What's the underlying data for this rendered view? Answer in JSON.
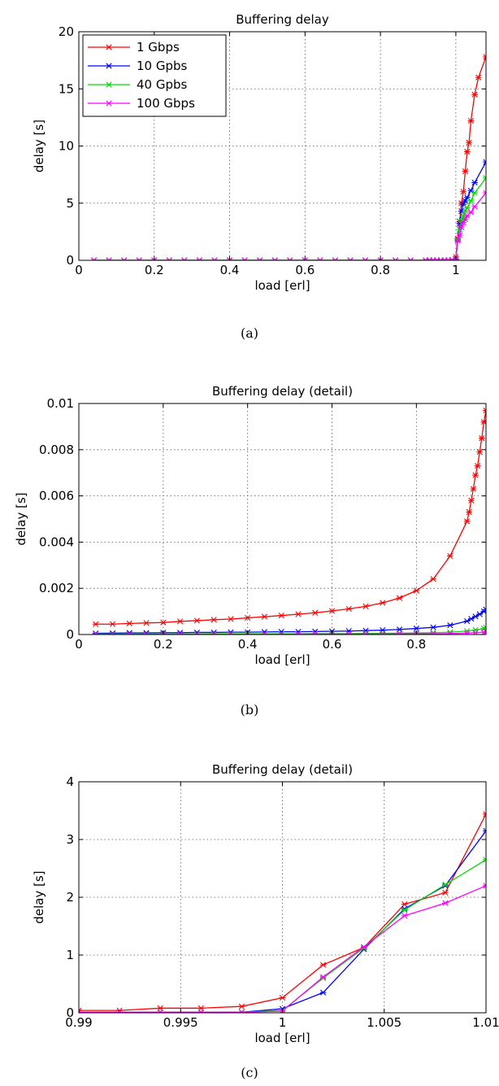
{
  "chart_data": [
    {
      "type": "line",
      "panel": "a",
      "caption": "(a)",
      "title": "Buffering delay",
      "xlabel": "load [erl]",
      "ylabel": "delay [s]",
      "xlim": [
        0,
        1.08
      ],
      "ylim": [
        0,
        20
      ],
      "xticks": [
        0,
        0.2,
        0.4,
        0.6,
        0.8,
        1
      ],
      "xtick_labels": [
        "0",
        "0.2",
        "0.4",
        "0.6",
        "0.8",
        "1"
      ],
      "yticks": [
        0,
        5,
        10,
        15,
        20
      ],
      "ytick_labels": [
        "0",
        "5",
        "10",
        "15",
        "20"
      ],
      "grid": true,
      "legend": "top-left",
      "series": [
        {
          "name": "1 Gbps",
          "color": "#ff0000",
          "x": [
            0.04,
            0.08,
            0.12,
            0.16,
            0.2,
            0.24,
            0.28,
            0.32,
            0.36,
            0.4,
            0.44,
            0.48,
            0.52,
            0.56,
            0.6,
            0.64,
            0.68,
            0.72,
            0.76,
            0.8,
            0.84,
            0.88,
            0.92,
            0.93,
            0.94,
            0.95,
            0.96,
            0.97,
            0.98,
            0.99,
            1.0,
            1.005,
            1.01,
            1.015,
            1.02,
            1.025,
            1.03,
            1.035,
            1.04,
            1.05,
            1.06,
            1.08
          ],
          "y": [
            0,
            0,
            0,
            0,
            0,
            0,
            0,
            0,
            0,
            0,
            0,
            0,
            0,
            0,
            0,
            0,
            0,
            0,
            0,
            0,
            0,
            0,
            0,
            0,
            0,
            0,
            0,
            0,
            0,
            0.05,
            0.3,
            1.9,
            3.4,
            5.0,
            6.0,
            7.8,
            9.5,
            10.3,
            12.2,
            14.5,
            16.0,
            17.8
          ]
        },
        {
          "name": "10 Gpbs",
          "color": "#0000ff",
          "x": [
            0.04,
            0.08,
            0.12,
            0.16,
            0.2,
            0.24,
            0.28,
            0.32,
            0.36,
            0.4,
            0.44,
            0.48,
            0.52,
            0.56,
            0.6,
            0.64,
            0.68,
            0.72,
            0.76,
            0.8,
            0.84,
            0.88,
            0.92,
            0.93,
            0.94,
            0.95,
            0.96,
            0.97,
            0.98,
            0.99,
            1.0,
            1.005,
            1.01,
            1.015,
            1.02,
            1.025,
            1.03,
            1.04,
            1.05,
            1.08
          ],
          "y": [
            0,
            0,
            0,
            0,
            0,
            0,
            0,
            0,
            0,
            0,
            0,
            0,
            0,
            0,
            0,
            0,
            0,
            0,
            0,
            0,
            0,
            0,
            0,
            0,
            0,
            0,
            0,
            0,
            0,
            0.03,
            0.1,
            1.8,
            3.2,
            4.3,
            4.9,
            5.2,
            5.5,
            6.1,
            6.8,
            8.6
          ]
        },
        {
          "name": "40 Gpbs",
          "color": "#00dd00",
          "x": [
            0.04,
            0.08,
            0.12,
            0.16,
            0.2,
            0.24,
            0.28,
            0.32,
            0.36,
            0.4,
            0.44,
            0.48,
            0.52,
            0.56,
            0.6,
            0.64,
            0.68,
            0.72,
            0.76,
            0.8,
            0.84,
            0.88,
            0.92,
            0.93,
            0.94,
            0.95,
            0.96,
            0.97,
            0.98,
            0.99,
            1.0,
            1.005,
            1.01,
            1.015,
            1.02,
            1.025,
            1.03,
            1.04,
            1.05,
            1.08
          ],
          "y": [
            0,
            0,
            0,
            0,
            0,
            0,
            0,
            0,
            0,
            0,
            0,
            0,
            0,
            0,
            0,
            0,
            0,
            0,
            0,
            0,
            0,
            0,
            0,
            0,
            0,
            0,
            0,
            0,
            0,
            0.03,
            0.08,
            1.8,
            2.7,
            3.5,
            3.9,
            4.3,
            4.6,
            5.2,
            5.9,
            7.2
          ]
        },
        {
          "name": "100 Gbps",
          "color": "#ff00ff",
          "x": [
            0.04,
            0.08,
            0.12,
            0.16,
            0.2,
            0.24,
            0.28,
            0.32,
            0.36,
            0.4,
            0.44,
            0.48,
            0.52,
            0.56,
            0.6,
            0.64,
            0.68,
            0.72,
            0.76,
            0.8,
            0.84,
            0.88,
            0.92,
            0.93,
            0.94,
            0.95,
            0.96,
            0.97,
            0.98,
            0.99,
            1.0,
            1.005,
            1.01,
            1.015,
            1.02,
            1.025,
            1.03,
            1.04,
            1.05,
            1.08
          ],
          "y": [
            0,
            0,
            0,
            0,
            0,
            0,
            0,
            0,
            0,
            0,
            0,
            0,
            0,
            0,
            0,
            0,
            0,
            0,
            0,
            0,
            0,
            0,
            0,
            0,
            0,
            0,
            0,
            0,
            0,
            0.03,
            0.07,
            1.7,
            2.2,
            2.9,
            3.3,
            3.6,
            3.9,
            4.2,
            4.7,
            5.9
          ]
        }
      ]
    },
    {
      "type": "line",
      "panel": "b",
      "caption": "(b)",
      "title": "Buffering delay (detail)",
      "xlabel": "load [erl]",
      "ylabel": "delay [s]",
      "xlim": [
        0,
        0.965
      ],
      "ylim": [
        0,
        0.01
      ],
      "xticks": [
        0,
        0.2,
        0.4,
        0.6,
        0.8
      ],
      "xtick_labels": [
        "0",
        "0.2",
        "0.4",
        "0.6",
        "0.8"
      ],
      "yticks": [
        0,
        0.002,
        0.004,
        0.006,
        0.008,
        0.01
      ],
      "ytick_labels": [
        "0",
        "0.002",
        "0.004",
        "0.006",
        "0.008",
        "0.01"
      ],
      "grid": true,
      "series": [
        {
          "name": "1 Gbps",
          "color": "#ff0000",
          "x": [
            0.04,
            0.08,
            0.12,
            0.16,
            0.2,
            0.24,
            0.28,
            0.32,
            0.36,
            0.4,
            0.44,
            0.48,
            0.52,
            0.56,
            0.6,
            0.64,
            0.68,
            0.72,
            0.76,
            0.8,
            0.84,
            0.88,
            0.92,
            0.925,
            0.93,
            0.935,
            0.94,
            0.945,
            0.95,
            0.955,
            0.96,
            0.965
          ],
          "y": [
            0.00045,
            0.00045,
            0.00048,
            0.0005,
            0.00052,
            0.00057,
            0.0006,
            0.00064,
            0.00067,
            0.00072,
            0.00077,
            0.00082,
            0.00088,
            0.00094,
            0.00102,
            0.00111,
            0.00122,
            0.00137,
            0.00158,
            0.0019,
            0.0024,
            0.0034,
            0.0049,
            0.0053,
            0.0058,
            0.0063,
            0.0069,
            0.0073,
            0.0079,
            0.0085,
            0.0092,
            0.0097
          ]
        },
        {
          "name": "10 Gpbs",
          "color": "#0000ff",
          "x": [
            0.04,
            0.08,
            0.12,
            0.16,
            0.2,
            0.24,
            0.28,
            0.32,
            0.36,
            0.4,
            0.44,
            0.48,
            0.52,
            0.56,
            0.6,
            0.64,
            0.68,
            0.72,
            0.76,
            0.8,
            0.84,
            0.88,
            0.92,
            0.93,
            0.94,
            0.95,
            0.96,
            0.965
          ],
          "y": [
            5e-05,
            6e-05,
            7e-05,
            7e-05,
            8e-05,
            8e-05,
            9e-05,
            9e-05,
            0.0001,
            0.0001,
            0.00011,
            0.00012,
            0.00012,
            0.00013,
            0.00014,
            0.00015,
            0.00017,
            0.00019,
            0.00022,
            0.00026,
            0.00031,
            0.0004,
            0.00058,
            0.00068,
            0.00078,
            0.00088,
            0.001,
            0.00108
          ]
        },
        {
          "name": "40 Gpbs",
          "color": "#00dd00",
          "x": [
            0.04,
            0.08,
            0.12,
            0.16,
            0.2,
            0.24,
            0.28,
            0.32,
            0.36,
            0.4,
            0.44,
            0.48,
            0.52,
            0.56,
            0.6,
            0.64,
            0.68,
            0.72,
            0.76,
            0.8,
            0.84,
            0.88,
            0.92,
            0.94,
            0.96,
            0.965
          ],
          "y": [
            2e-05,
            2e-05,
            2e-05,
            2e-05,
            2e-05,
            2e-05,
            2e-05,
            3e-05,
            3e-05,
            3e-05,
            3e-05,
            3e-05,
            3e-05,
            4e-05,
            4e-05,
            4e-05,
            5e-05,
            5e-05,
            6e-05,
            7e-05,
            8e-05,
            0.0001,
            0.00015,
            0.0002,
            0.00026,
            0.0003
          ]
        },
        {
          "name": "100 Gbps",
          "color": "#ff00ff",
          "x": [
            0.04,
            0.08,
            0.12,
            0.16,
            0.2,
            0.24,
            0.28,
            0.32,
            0.36,
            0.4,
            0.44,
            0.48,
            0.52,
            0.56,
            0.6,
            0.64,
            0.68,
            0.72,
            0.76,
            0.8,
            0.84,
            0.88,
            0.92,
            0.94,
            0.96,
            0.965
          ],
          "y": [
            1e-05,
            1e-05,
            1e-05,
            1e-05,
            1e-05,
            1e-05,
            1e-05,
            1e-05,
            1e-05,
            1e-05,
            1e-05,
            1e-05,
            2e-05,
            2e-05,
            2e-05,
            2e-05,
            2e-05,
            2e-05,
            3e-05,
            3e-05,
            3e-05,
            4e-05,
            6e-05,
            8e-05,
            0.0001,
            0.00012
          ]
        }
      ]
    },
    {
      "type": "line",
      "panel": "c",
      "caption": "(c)",
      "title": "Buffering delay (detail)",
      "xlabel": "load [erl]",
      "ylabel": "delay [s]",
      "xlim": [
        0.99,
        1.01
      ],
      "ylim": [
        0,
        4
      ],
      "xticks": [
        0.99,
        0.995,
        1,
        1.005,
        1.01
      ],
      "xtick_labels": [
        "0.99",
        "0.995",
        "1",
        "1.005",
        "1.01"
      ],
      "yticks": [
        0,
        1,
        2,
        3,
        4
      ],
      "ytick_labels": [
        "0",
        "1",
        "2",
        "3",
        "4"
      ],
      "grid": true,
      "series": [
        {
          "name": "1 Gbps",
          "color": "#ff0000",
          "x": [
            0.99,
            0.992,
            0.994,
            0.996,
            0.998,
            1.0,
            1.002,
            1.004,
            1.006,
            1.008,
            1.01
          ],
          "y": [
            0.04,
            0.04,
            0.08,
            0.08,
            0.11,
            0.26,
            0.83,
            1.13,
            1.88,
            2.08,
            3.44
          ]
        },
        {
          "name": "10 Gpbs",
          "color": "#0000ff",
          "x": [
            0.99,
            0.992,
            0.994,
            0.996,
            0.998,
            1.0,
            1.002,
            1.004,
            1.006,
            1.008,
            1.01
          ],
          "y": [
            0.01,
            0.01,
            0.01,
            0.01,
            0.01,
            0.07,
            0.35,
            1.1,
            1.8,
            2.2,
            3.15
          ]
        },
        {
          "name": "40 Gpbs",
          "color": "#00dd00",
          "x": [
            0.99,
            0.992,
            0.994,
            0.996,
            0.998,
            1.0,
            1.002,
            1.004,
            1.006,
            1.008,
            1.01
          ],
          "y": [
            0.01,
            0.01,
            0.01,
            0.01,
            0.01,
            0.04,
            0.6,
            1.12,
            1.78,
            2.22,
            2.65
          ]
        },
        {
          "name": "100 Gbps",
          "color": "#ff00ff",
          "x": [
            0.99,
            0.992,
            0.994,
            0.996,
            0.998,
            1.0,
            1.002,
            1.004,
            1.006,
            1.008,
            1.01
          ],
          "y": [
            0.01,
            0.01,
            0.01,
            0.01,
            0.01,
            0.03,
            0.62,
            1.14,
            1.68,
            1.9,
            2.2
          ]
        }
      ]
    }
  ]
}
